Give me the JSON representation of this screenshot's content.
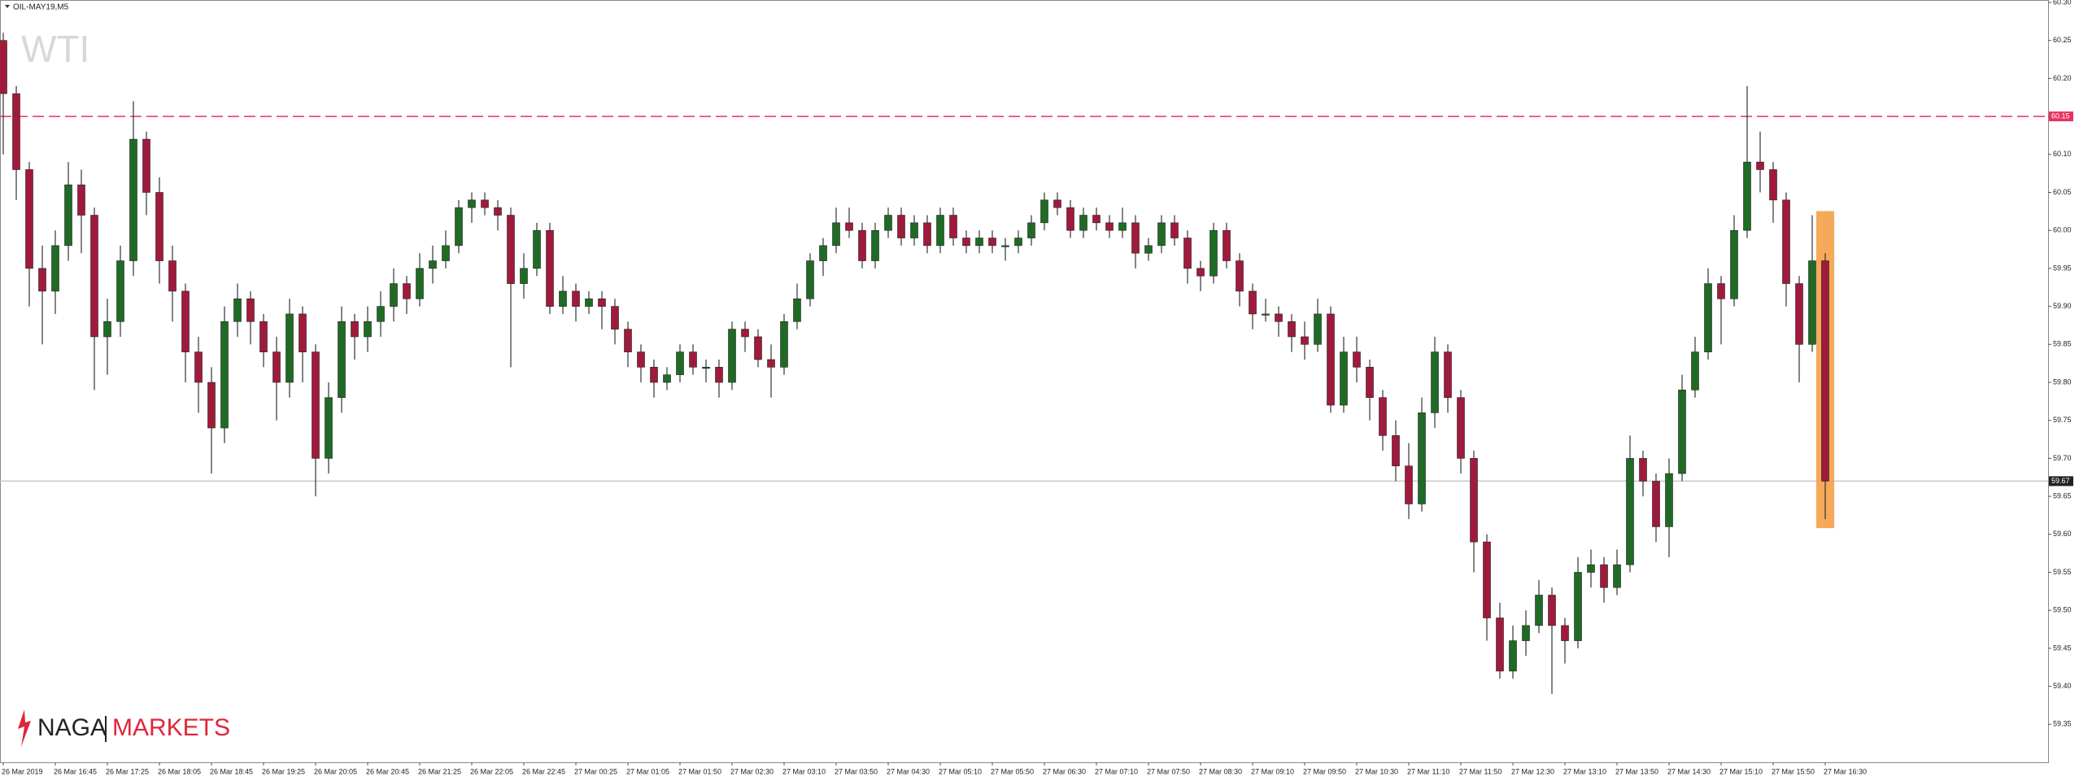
{
  "chart_data": {
    "type": "candlestick",
    "symbol": "OIL-MAY19,M5",
    "watermark": "WTI",
    "brand": [
      "NAGA",
      "MARKETS"
    ],
    "up_color": "#1f6b25",
    "down_color": "#a01a3c",
    "ylim": [
      59.3,
      60.3
    ],
    "yticks": [
      {
        "value": 60.3,
        "label": "60.30"
      },
      60.25,
      {
        "value": 60.2,
        "label": "60.20"
      },
      60.15,
      {
        "value": 60.1,
        "label": "60.10"
      },
      60.05,
      {
        "value": 60.0,
        "label": "60.00"
      },
      59.95,
      {
        "value": 59.9,
        "label": "59.90"
      },
      59.85,
      {
        "value": 59.8,
        "label": "59.80"
      },
      59.75,
      {
        "value": 59.7,
        "label": "59.70"
      },
      59.65,
      {
        "value": 59.6,
        "label": "59.60"
      },
      59.55,
      {
        "value": 59.5,
        "label": "59.50"
      },
      59.45,
      {
        "value": 59.4,
        "label": "59.40"
      },
      59.35
    ],
    "hlines": [
      {
        "value": 60.15,
        "color": "#e8325f",
        "dashed": true
      },
      {
        "value": 59.67,
        "color": "#c8c8c8",
        "dashed": false
      }
    ],
    "xtick_labels": [
      "26 Mar 2019",
      "26 Mar 16:45",
      "26 Mar 17:25",
      "26 Mar 18:05",
      "26 Mar 18:45",
      "26 Mar 19:25",
      "26 Mar 20:05",
      "26 Mar 20:45",
      "26 Mar 21:25",
      "26 Mar 22:05",
      "26 Mar 22:45",
      "27 Mar 00:25",
      "27 Mar 01:05",
      "27 Mar 01:50",
      "27 Mar 02:30",
      "27 Mar 03:10",
      "27 Mar 03:50",
      "27 Mar 04:30",
      "27 Mar 05:10",
      "27 Mar 05:50",
      "27 Mar 06:30",
      "27 Mar 07:10",
      "27 Mar 07:50",
      "27 Mar 08:30",
      "27 Mar 09:10",
      "27 Mar 09:50",
      "27 Mar 10:30",
      "27 Mar 11:10",
      "27 Mar 11:50",
      "27 Mar 12:30",
      "27 Mar 13:10",
      "27 Mar 13:50",
      "27 Mar 14:30",
      "27 Mar 15:10",
      "27 Mar 15:50",
      "27 Mar 16:30"
    ],
    "ohlc": [
      [
        60.25,
        60.26,
        60.1,
        60.18
      ],
      [
        60.18,
        60.19,
        60.04,
        60.08
      ],
      [
        60.08,
        60.09,
        59.9,
        59.95
      ],
      [
        59.95,
        59.98,
        59.85,
        59.92
      ],
      [
        59.92,
        60.0,
        59.89,
        59.98
      ],
      [
        59.98,
        60.09,
        59.96,
        60.06
      ],
      [
        60.06,
        60.08,
        59.97,
        60.02
      ],
      [
        60.02,
        60.03,
        59.79,
        59.86
      ],
      [
        59.86,
        59.91,
        59.81,
        59.88
      ],
      [
        59.88,
        59.98,
        59.86,
        59.96
      ],
      [
        59.96,
        60.17,
        59.94,
        60.12
      ],
      [
        60.12,
        60.13,
        60.02,
        60.05
      ],
      [
        60.05,
        60.07,
        59.93,
        59.96
      ],
      [
        59.96,
        59.98,
        59.88,
        59.92
      ],
      [
        59.92,
        59.93,
        59.8,
        59.84
      ],
      [
        59.84,
        59.86,
        59.76,
        59.8
      ],
      [
        59.8,
        59.82,
        59.68,
        59.74
      ],
      [
        59.74,
        59.9,
        59.72,
        59.88
      ],
      [
        59.88,
        59.93,
        59.86,
        59.91
      ],
      [
        59.91,
        59.92,
        59.85,
        59.88
      ],
      [
        59.88,
        59.89,
        59.82,
        59.84
      ],
      [
        59.84,
        59.86,
        59.75,
        59.8
      ],
      [
        59.8,
        59.91,
        59.78,
        59.89
      ],
      [
        59.89,
        59.9,
        59.8,
        59.84
      ],
      [
        59.84,
        59.85,
        59.65,
        59.7
      ],
      [
        59.7,
        59.8,
        59.68,
        59.78
      ],
      [
        59.78,
        59.9,
        59.76,
        59.88
      ],
      [
        59.88,
        59.89,
        59.83,
        59.86
      ],
      [
        59.86,
        59.9,
        59.84,
        59.88
      ],
      [
        59.88,
        59.92,
        59.86,
        59.9
      ],
      [
        59.9,
        59.95,
        59.88,
        59.93
      ],
      [
        59.93,
        59.94,
        59.89,
        59.91
      ],
      [
        59.91,
        59.97,
        59.9,
        59.95
      ],
      [
        59.95,
        59.98,
        59.93,
        59.96
      ],
      [
        59.96,
        60.0,
        59.95,
        59.98
      ],
      [
        59.98,
        60.04,
        59.97,
        60.03
      ],
      [
        60.03,
        60.05,
        60.01,
        60.04
      ],
      [
        60.04,
        60.05,
        60.02,
        60.03
      ],
      [
        60.03,
        60.04,
        60.0,
        60.02
      ],
      [
        60.02,
        60.03,
        59.82,
        59.93
      ],
      [
        59.93,
        59.97,
        59.91,
        59.95
      ],
      [
        59.95,
        60.01,
        59.94,
        60.0
      ],
      [
        60.0,
        60.01,
        59.89,
        59.9
      ],
      [
        59.9,
        59.94,
        59.89,
        59.92
      ],
      [
        59.92,
        59.93,
        59.88,
        59.9
      ],
      [
        59.9,
        59.92,
        59.89,
        59.91
      ],
      [
        59.91,
        59.92,
        59.87,
        59.9
      ],
      [
        59.9,
        59.91,
        59.85,
        59.87
      ],
      [
        59.87,
        59.88,
        59.82,
        59.84
      ],
      [
        59.84,
        59.85,
        59.8,
        59.82
      ],
      [
        59.82,
        59.83,
        59.78,
        59.8
      ],
      [
        59.8,
        59.82,
        59.79,
        59.81
      ],
      [
        59.81,
        59.85,
        59.8,
        59.84
      ],
      [
        59.84,
        59.85,
        59.81,
        59.82
      ],
      [
        59.82,
        59.83,
        59.8,
        59.82
      ],
      [
        59.82,
        59.83,
        59.78,
        59.8
      ],
      [
        59.8,
        59.88,
        59.79,
        59.87
      ],
      [
        59.87,
        59.88,
        59.84,
        59.86
      ],
      [
        59.86,
        59.87,
        59.82,
        59.83
      ],
      [
        59.83,
        59.85,
        59.78,
        59.82
      ],
      [
        59.82,
        59.89,
        59.81,
        59.88
      ],
      [
        59.88,
        59.93,
        59.87,
        59.91
      ],
      [
        59.91,
        59.97,
        59.9,
        59.96
      ],
      [
        59.96,
        59.99,
        59.94,
        59.98
      ],
      [
        59.98,
        60.03,
        59.97,
        60.01
      ],
      [
        60.01,
        60.03,
        59.99,
        60.0
      ],
      [
        60.0,
        60.01,
        59.95,
        59.96
      ],
      [
        59.96,
        60.01,
        59.95,
        60.0
      ],
      [
        60.0,
        60.03,
        59.99,
        60.02
      ],
      [
        60.02,
        60.03,
        59.98,
        59.99
      ],
      [
        59.99,
        60.02,
        59.98,
        60.01
      ],
      [
        60.01,
        60.02,
        59.97,
        59.98
      ],
      [
        59.98,
        60.03,
        59.97,
        60.02
      ],
      [
        60.02,
        60.03,
        59.98,
        59.99
      ],
      [
        59.99,
        60.0,
        59.97,
        59.98
      ],
      [
        59.98,
        60.0,
        59.97,
        59.99
      ],
      [
        59.99,
        60.0,
        59.97,
        59.98
      ],
      [
        59.98,
        59.99,
        59.96,
        59.98
      ],
      [
        59.98,
        60.0,
        59.97,
        59.99
      ],
      [
        59.99,
        60.02,
        59.98,
        60.01
      ],
      [
        60.01,
        60.05,
        60.0,
        60.04
      ],
      [
        60.04,
        60.05,
        60.02,
        60.03
      ],
      [
        60.03,
        60.04,
        59.99,
        60.0
      ],
      [
        60.0,
        60.03,
        59.99,
        60.02
      ],
      [
        60.02,
        60.03,
        60.0,
        60.01
      ],
      [
        60.01,
        60.02,
        59.99,
        60.0
      ],
      [
        60.0,
        60.03,
        59.99,
        60.01
      ],
      [
        60.01,
        60.02,
        59.95,
        59.97
      ],
      [
        59.97,
        59.99,
        59.96,
        59.98
      ],
      [
        59.98,
        60.02,
        59.97,
        60.01
      ],
      [
        60.01,
        60.02,
        59.98,
        59.99
      ],
      [
        59.99,
        60.0,
        59.93,
        59.95
      ],
      [
        59.95,
        59.96,
        59.92,
        59.94
      ],
      [
        59.94,
        60.01,
        59.93,
        60.0
      ],
      [
        60.0,
        60.01,
        59.95,
        59.96
      ],
      [
        59.96,
        59.97,
        59.9,
        59.92
      ],
      [
        59.92,
        59.93,
        59.87,
        59.89
      ],
      [
        59.89,
        59.91,
        59.88,
        59.89
      ],
      [
        59.89,
        59.9,
        59.86,
        59.88
      ],
      [
        59.88,
        59.89,
        59.84,
        59.86
      ],
      [
        59.86,
        59.88,
        59.83,
        59.85
      ],
      [
        59.85,
        59.91,
        59.84,
        59.89
      ],
      [
        59.89,
        59.9,
        59.76,
        59.77
      ],
      [
        59.77,
        59.86,
        59.76,
        59.84
      ],
      [
        59.84,
        59.86,
        59.8,
        59.82
      ],
      [
        59.82,
        59.83,
        59.75,
        59.78
      ],
      [
        59.78,
        59.79,
        59.71,
        59.73
      ],
      [
        59.73,
        59.75,
        59.67,
        59.69
      ],
      [
        59.69,
        59.72,
        59.62,
        59.64
      ],
      [
        59.64,
        59.78,
        59.63,
        59.76
      ],
      [
        59.76,
        59.86,
        59.74,
        59.84
      ],
      [
        59.84,
        59.85,
        59.76,
        59.78
      ],
      [
        59.78,
        59.79,
        59.68,
        59.7
      ],
      [
        59.7,
        59.71,
        59.55,
        59.59
      ],
      [
        59.59,
        59.6,
        59.46,
        59.49
      ],
      [
        59.49,
        59.51,
        59.41,
        59.42
      ],
      [
        59.42,
        59.48,
        59.41,
        59.46
      ],
      [
        59.46,
        59.5,
        59.44,
        59.48
      ],
      [
        59.48,
        59.54,
        59.47,
        59.52
      ],
      [
        59.52,
        59.53,
        59.39,
        59.48
      ],
      [
        59.48,
        59.49,
        59.43,
        59.46
      ],
      [
        59.46,
        59.57,
        59.45,
        59.55
      ],
      [
        59.55,
        59.58,
        59.53,
        59.56
      ],
      [
        59.56,
        59.57,
        59.51,
        59.53
      ],
      [
        59.53,
        59.58,
        59.52,
        59.56
      ],
      [
        59.56,
        59.73,
        59.55,
        59.7
      ],
      [
        59.7,
        59.71,
        59.65,
        59.67
      ],
      [
        59.67,
        59.68,
        59.59,
        59.61
      ],
      [
        59.61,
        59.7,
        59.57,
        59.68
      ],
      [
        59.68,
        59.81,
        59.67,
        59.79
      ],
      [
        59.79,
        59.86,
        59.78,
        59.84
      ],
      [
        59.84,
        59.95,
        59.83,
        59.93
      ],
      [
        59.93,
        59.94,
        59.85,
        59.91
      ],
      [
        59.91,
        60.02,
        59.9,
        60.0
      ],
      [
        60.0,
        60.19,
        59.99,
        60.09
      ],
      [
        60.09,
        60.13,
        60.05,
        60.08
      ],
      [
        60.08,
        60.09,
        60.01,
        60.04
      ],
      [
        60.04,
        60.05,
        59.9,
        59.93
      ],
      [
        59.93,
        59.94,
        59.8,
        59.85
      ],
      [
        59.85,
        60.02,
        59.84,
        59.96
      ],
      [
        59.96,
        59.97,
        59.62,
        59.67
      ]
    ]
  }
}
